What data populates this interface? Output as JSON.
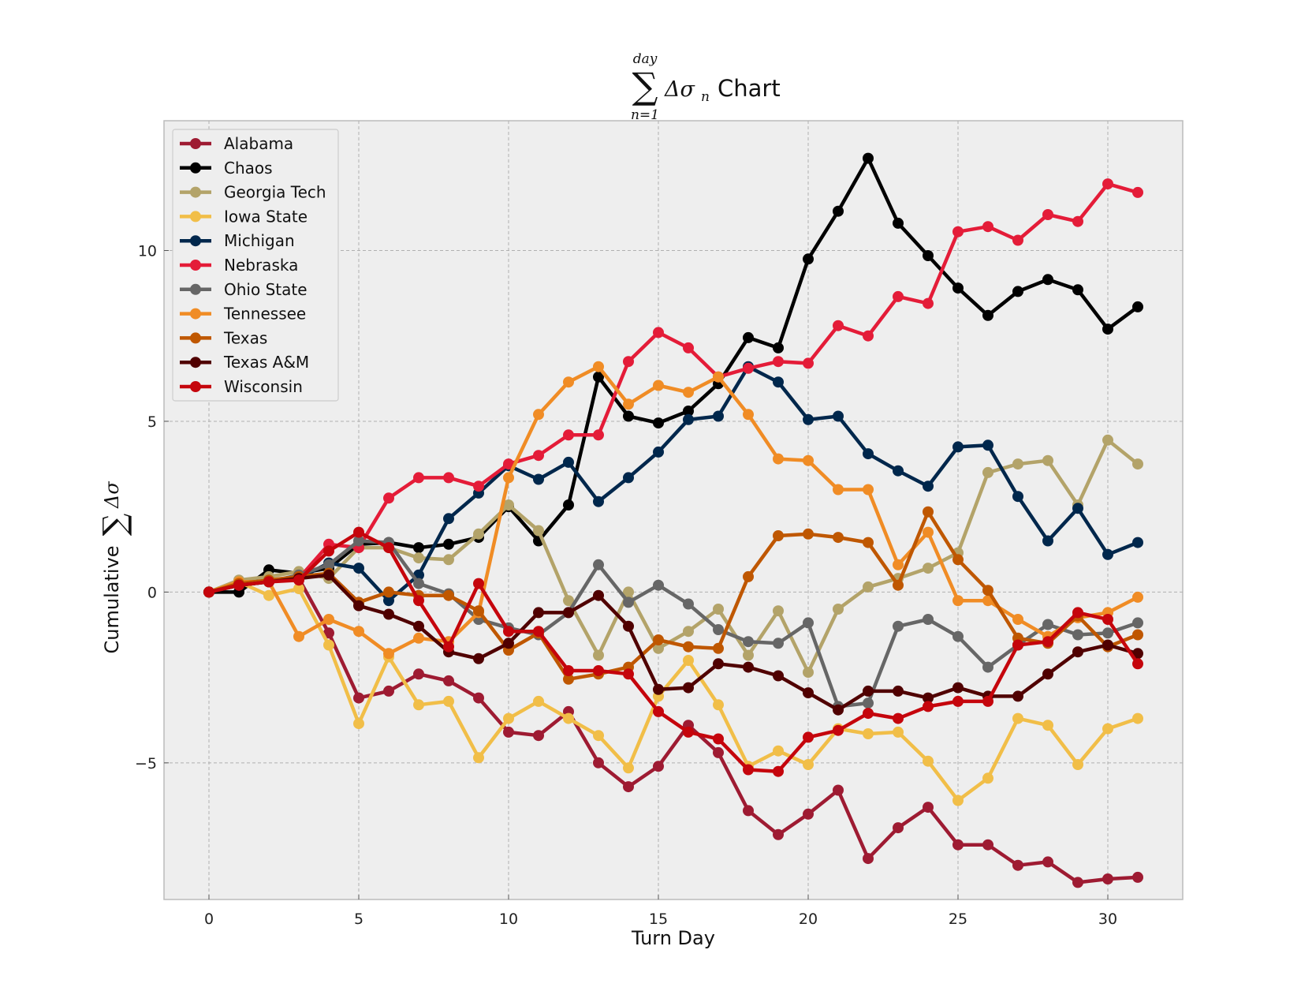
{
  "chart_data": {
    "type": "line",
    "title": "Chart",
    "title_math": {
      "symbol": "∑",
      "upper": "day",
      "lower": "n=1",
      "term": "Δσ",
      "subscript": "n"
    },
    "xlabel": "Turn Day",
    "ylabel": "Cumulative",
    "ylabel_math": {
      "symbol": "∑",
      "term": "Δσ"
    },
    "xlim": [
      -1.5,
      32.5
    ],
    "ylim": [
      -9.0,
      13.8
    ],
    "xticks": [
      0,
      5,
      10,
      15,
      20,
      25,
      30
    ],
    "yticks": [
      -5,
      0,
      5,
      10
    ],
    "ytick_labels": [
      "−5",
      "0",
      "5",
      "10"
    ],
    "grid": true,
    "legend_position": "top-left",
    "x": [
      0,
      1,
      2,
      3,
      4,
      5,
      6,
      7,
      8,
      9,
      10,
      11,
      12,
      13,
      14,
      15,
      16,
      17,
      18,
      19,
      20,
      21,
      22,
      23,
      24,
      25,
      26,
      27,
      28,
      29,
      30,
      31
    ],
    "series": [
      {
        "name": "Alabama",
        "color": "#9e1b32",
        "values": [
          0,
          0.2,
          0.3,
          0.4,
          -1.2,
          -3.1,
          -2.9,
          -2.4,
          -2.6,
          -3.1,
          -4.1,
          -4.2,
          -3.5,
          -5.0,
          -5.7,
          -5.1,
          -3.9,
          -4.7,
          -6.4,
          -7.1,
          -6.5,
          -5.8,
          -7.8,
          -6.9,
          -6.3,
          -7.4,
          -7.4,
          -8.0,
          -7.9,
          -8.5,
          -8.4,
          -8.35
        ]
      },
      {
        "name": "Chaos",
        "color": "#000000",
        "values": [
          0,
          0,
          0.65,
          0.55,
          0.7,
          1.4,
          1.45,
          1.3,
          1.4,
          1.6,
          2.5,
          1.5,
          2.55,
          6.3,
          5.15,
          4.95,
          5.3,
          6.1,
          7.45,
          7.15,
          9.75,
          11.15,
          12.7,
          10.8,
          9.85,
          8.9,
          8.1,
          8.8,
          9.15,
          8.85,
          7.7,
          8.35
        ]
      },
      {
        "name": "Georgia Tech",
        "color": "#b3a369",
        "values": [
          0,
          0.35,
          0.45,
          0.6,
          0.4,
          1.3,
          1.3,
          1.0,
          0.95,
          1.7,
          2.55,
          1.8,
          -0.25,
          -1.85,
          0,
          -1.65,
          -1.15,
          -0.5,
          -1.85,
          -0.55,
          -2.35,
          -0.5,
          0.15,
          0.4,
          0.7,
          1.15,
          3.5,
          3.75,
          3.85,
          2.55,
          4.45,
          3.75
        ]
      },
      {
        "name": "Iowa State",
        "color": "#f1be48",
        "values": [
          0,
          0.3,
          -0.1,
          0.1,
          -1.55,
          -3.85,
          -1.9,
          -3.3,
          -3.2,
          -4.85,
          -3.7,
          -3.2,
          -3.7,
          -4.2,
          -5.15,
          -3.05,
          -2.0,
          -3.3,
          -5.1,
          -4.65,
          -5.05,
          -4.0,
          -4.15,
          -4.1,
          -4.95,
          -6.1,
          -5.45,
          -3.7,
          -3.9,
          -5.05,
          -4.0,
          -3.7
        ]
      },
      {
        "name": "Michigan",
        "color": "#00274c",
        "values": [
          0,
          0.2,
          0.3,
          0.4,
          0.85,
          0.7,
          -0.25,
          0.5,
          2.15,
          2.9,
          3.7,
          3.3,
          3.8,
          2.65,
          3.35,
          4.1,
          5.05,
          5.15,
          6.6,
          6.15,
          5.05,
          5.15,
          4.05,
          3.55,
          3.1,
          4.25,
          4.3,
          2.8,
          1.5,
          2.45,
          1.1,
          1.45
        ]
      },
      {
        "name": "Nebraska",
        "color": "#e41c38",
        "values": [
          0,
          0.25,
          0.3,
          0.4,
          1.4,
          1.3,
          2.75,
          3.35,
          3.35,
          3.1,
          3.75,
          4.0,
          4.6,
          4.6,
          6.75,
          7.6,
          7.15,
          6.3,
          6.55,
          6.75,
          6.7,
          7.8,
          7.5,
          8.65,
          8.45,
          10.55,
          10.7,
          10.3,
          11.05,
          10.85,
          11.95,
          11.7
        ]
      },
      {
        "name": "Ohio State",
        "color": "#666666",
        "values": [
          0,
          0.2,
          0.3,
          0.5,
          0.8,
          1.5,
          1.45,
          0.25,
          -0.05,
          -0.8,
          -1.05,
          -1.25,
          -0.6,
          0.8,
          -0.3,
          0.2,
          -0.35,
          -1.1,
          -1.45,
          -1.5,
          -0.9,
          -3.35,
          -3.25,
          -1.0,
          -0.8,
          -1.3,
          -2.2,
          -1.55,
          -0.95,
          -1.25,
          -1.2,
          -0.9
        ]
      },
      {
        "name": "Tennessee",
        "color": "#f08c25",
        "values": [
          0,
          0.3,
          0.3,
          -1.3,
          -0.8,
          -1.15,
          -1.8,
          -1.35,
          -1.45,
          -0.6,
          3.35,
          5.2,
          6.15,
          6.6,
          5.5,
          6.05,
          5.85,
          6.3,
          5.2,
          3.9,
          3.85,
          3.0,
          3.0,
          0.8,
          1.75,
          -0.25,
          -0.25,
          -0.8,
          -1.3,
          -0.75,
          -0.6,
          -0.15
        ]
      },
      {
        "name": "Texas",
        "color": "#bf5700",
        "values": [
          0,
          0.25,
          0.35,
          0.45,
          0.55,
          -0.3,
          0,
          -0.1,
          -0.1,
          -0.55,
          -1.7,
          -1.2,
          -2.55,
          -2.4,
          -2.2,
          -1.4,
          -1.6,
          -1.65,
          0.45,
          1.65,
          1.7,
          1.6,
          1.45,
          0.2,
          2.35,
          0.95,
          0.05,
          -1.35,
          -1.5,
          -0.7,
          -1.6,
          -1.25
        ]
      },
      {
        "name": "Texas A&M",
        "color": "#500000",
        "values": [
          0,
          0.2,
          0.3,
          0.4,
          0.5,
          -0.4,
          -0.65,
          -1.0,
          -1.75,
          -1.95,
          -1.5,
          -0.6,
          -0.6,
          -0.1,
          -1.0,
          -2.85,
          -2.8,
          -2.1,
          -2.2,
          -2.45,
          -2.95,
          -3.45,
          -2.9,
          -2.9,
          -3.1,
          -2.8,
          -3.05,
          -3.05,
          -2.4,
          -1.75,
          -1.55,
          -1.8
        ]
      },
      {
        "name": "Wisconsin",
        "color": "#c5050c",
        "values": [
          0,
          0.2,
          0.3,
          0.35,
          1.2,
          1.75,
          1.3,
          -0.25,
          -1.6,
          0.25,
          -1.15,
          -1.15,
          -2.3,
          -2.3,
          -2.4,
          -3.5,
          -4.1,
          -4.3,
          -5.2,
          -5.25,
          -4.25,
          -4.05,
          -3.55,
          -3.7,
          -3.35,
          -3.2,
          -3.2,
          -1.55,
          -1.45,
          -0.6,
          -0.8,
          -2.1
        ]
      }
    ]
  }
}
